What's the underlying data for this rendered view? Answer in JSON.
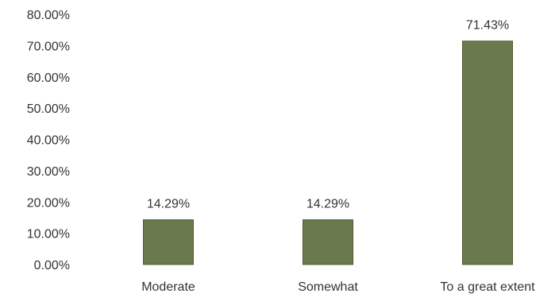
{
  "chart_data": {
    "type": "bar",
    "categories": [
      "Moderate",
      "Somewhat",
      "To a great extent"
    ],
    "values": [
      14.29,
      14.29,
      71.43
    ],
    "data_labels": [
      "14.29%",
      "14.29%",
      "71.43%"
    ],
    "title": "",
    "xlabel": "",
    "ylabel": "",
    "ylim": [
      0,
      80
    ],
    "yticks": [
      "0.00%",
      "10.00%",
      "20.00%",
      "30.00%",
      "40.00%",
      "50.00%",
      "60.00%",
      "70.00%",
      "80.00%"
    ],
    "grid": false,
    "legend": "none",
    "bar_color": "#6b7a4c",
    "bar_edge_color": "#4f5c35"
  }
}
